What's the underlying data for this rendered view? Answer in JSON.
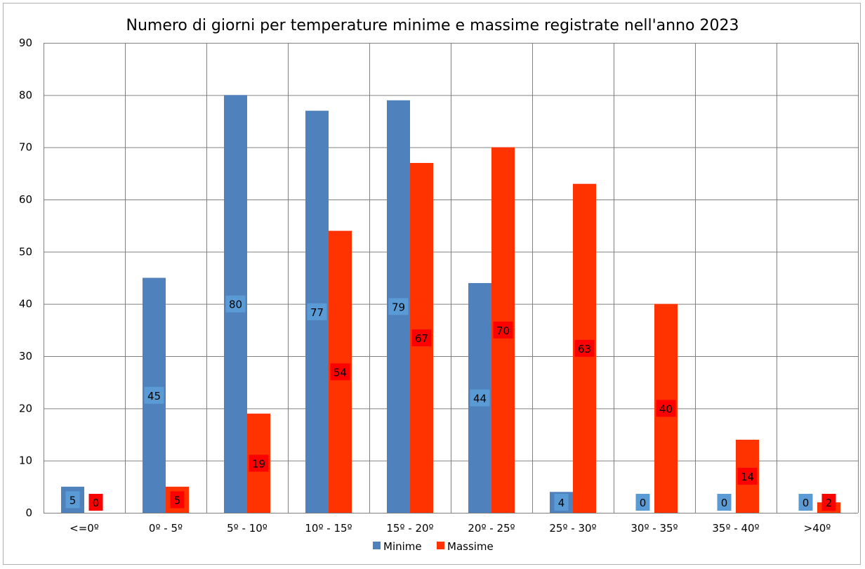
{
  "chart_data": {
    "type": "bar",
    "title": "Numero di giorni per temperature minime e massime registrate nell'anno 2023",
    "xlabel": "",
    "ylabel": "",
    "categories": [
      "<=0º",
      "0º - 5º",
      "5º - 10º",
      "10º - 15º",
      "15º - 20º",
      "20º - 25º",
      "25º - 30º",
      "30º - 35º",
      "35º - 40º",
      ">40º"
    ],
    "series": [
      {
        "name": "Minime",
        "values": [
          5,
          45,
          80,
          77,
          79,
          44,
          4,
          0,
          0,
          0
        ],
        "color": "#4f81bd",
        "label_bg": "#5b9bd5"
      },
      {
        "name": "Massime",
        "values": [
          0,
          5,
          19,
          54,
          67,
          70,
          63,
          40,
          14,
          2
        ],
        "color": "#ff3300",
        "label_bg": "#ff0000"
      }
    ],
    "ylim": [
      0,
      90
    ],
    "yticks": [
      0,
      10,
      20,
      30,
      40,
      50,
      60,
      70,
      80,
      90
    ],
    "grid": true,
    "legend": "bottom",
    "gridline_color": "#808080"
  }
}
